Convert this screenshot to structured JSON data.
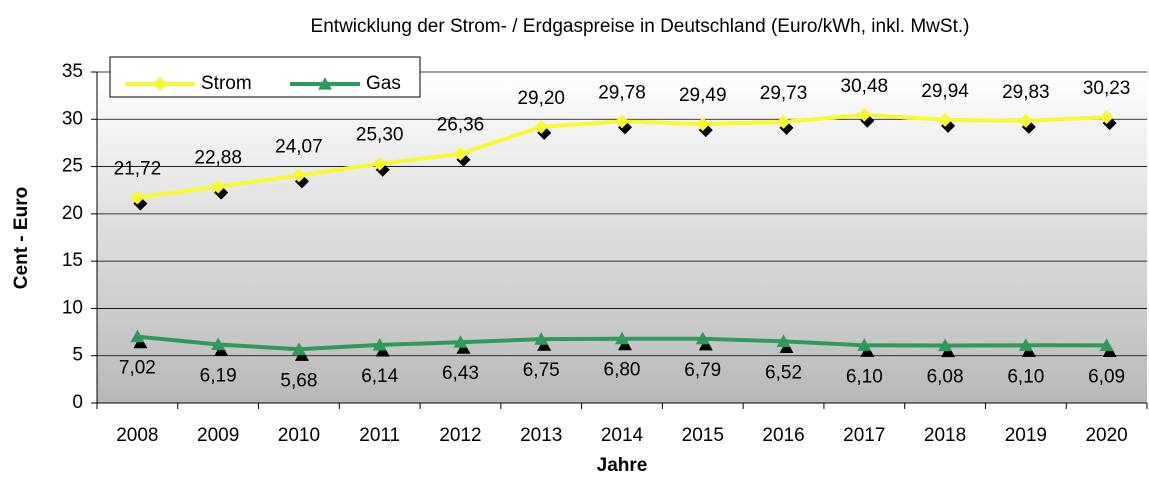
{
  "chart_data": {
    "type": "line",
    "title": "Entwicklung der Strom- / Erdgaspreise in Deutschland (Euro/kWh, inkl. MwSt.)",
    "x_label": "Jahre",
    "y_label": "Cent - Euro",
    "categories": [
      "2008",
      "2009",
      "2010",
      "2011",
      "2012",
      "2013",
      "2014",
      "2015",
      "2016",
      "2017",
      "2018",
      "2019",
      "2020"
    ],
    "series": [
      {
        "name": "Strom",
        "color": "#f8f832",
        "marker": "diamond",
        "values": [
          21.72,
          22.88,
          24.07,
          25.3,
          26.36,
          29.2,
          29.78,
          29.49,
          29.73,
          30.48,
          29.94,
          29.83,
          30.23
        ],
        "value_labels": [
          "21,72",
          "22,88",
          "24,07",
          "25,30",
          "26,36",
          "29,20",
          "29,78",
          "29,49",
          "29,73",
          "30,48",
          "29,94",
          "29,83",
          "30,23"
        ]
      },
      {
        "name": "Gas",
        "color": "#2e9a5a",
        "marker": "triangle",
        "values": [
          7.02,
          6.19,
          5.68,
          6.14,
          6.43,
          6.75,
          6.8,
          6.79,
          6.52,
          6.1,
          6.08,
          6.1,
          6.09
        ],
        "value_labels": [
          "7,02",
          "6,19",
          "5,68",
          "6,14",
          "6,43",
          "6,75",
          "6,80",
          "6,79",
          "6,52",
          "6,10",
          "6,08",
          "6,10",
          "6,09"
        ]
      }
    ],
    "ylim": [
      0,
      35
    ],
    "yticks": [
      0,
      5,
      10,
      15,
      20,
      25,
      30,
      35
    ],
    "grid": true,
    "legend": "top-left"
  }
}
